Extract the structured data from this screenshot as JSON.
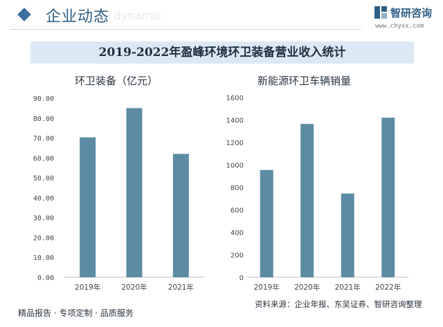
{
  "header": {
    "section_title": "企业动态",
    "section_subtitle": "e dynamic"
  },
  "brand": {
    "name": "智研咨询",
    "url": "www.chyxx.com"
  },
  "banner": {
    "title": "2019-2022年盈峰环境环卫装备营业收入统计"
  },
  "colors": {
    "bar": "#5b8ca4",
    "axis": "#bcbcbc",
    "tick_text": "#444444",
    "banner_bg": "#dce9f4",
    "brand": "#2f5e86"
  },
  "chart_data": [
    {
      "type": "bar",
      "title": "环卫装备（亿元）",
      "categories": [
        "2019年",
        "2020年",
        "2021年"
      ],
      "values": [
        70.3,
        85.0,
        62.0
      ],
      "ylim": [
        0,
        90
      ],
      "yticks": [
        "0.00",
        "10.00",
        "20.00",
        "30.00",
        "40.00",
        "50.00",
        "60.00",
        "70.00",
        "80.00",
        "90.00"
      ],
      "xlabel": "",
      "ylabel": "",
      "grid": false
    },
    {
      "type": "bar",
      "title": "新能源环卫车辆销量",
      "categories": [
        "2019年",
        "2020年",
        "2021年",
        "2022年"
      ],
      "values": [
        955,
        1365,
        745,
        1420
      ],
      "ylim": [
        0,
        1600
      ],
      "yticks": [
        "0",
        "200",
        "400",
        "600",
        "800",
        "1000",
        "1200",
        "1400",
        "1600"
      ],
      "xlabel": "",
      "ylabel": "",
      "grid": false
    }
  ],
  "footer": {
    "left": "精品报告 · 专项定制 · 品质服务",
    "source": "资料来源：企业年报、东吴证券、智研咨询整理"
  }
}
